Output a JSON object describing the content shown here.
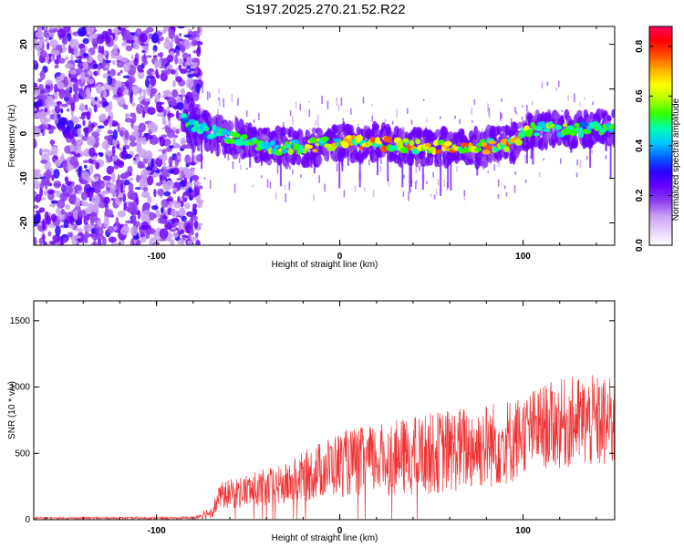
{
  "title": "S197.2025.270.21.52.R22",
  "colors": {
    "spectrogram_ramp": [
      "#ffffff",
      "#e6d2fb",
      "#c8a0f5",
      "#8f40f0",
      "#6a00ff",
      "#2a00ff",
      "#0060ff",
      "#00c8ff",
      "#00ffb0",
      "#30ff00",
      "#b0ff00",
      "#ffff00",
      "#ffb000",
      "#ff5000",
      "#ff0000",
      "#ff0060"
    ],
    "snr_line": "#ee3333"
  },
  "chart_data": [
    {
      "type": "heatmap",
      "name": "spectrogram",
      "xlabel": "Height of straight line (km)",
      "ylabel": "Frequency (Hz)",
      "xlim": [
        -167,
        150
      ],
      "ylim": [
        -25,
        24
      ],
      "x_ticks": [
        -100,
        0,
        100
      ],
      "x_tick_labels": [
        "-100",
        "0",
        "100"
      ],
      "y_ticks": [
        20,
        10,
        0,
        -10,
        -20
      ],
      "y_tick_labels": [
        "20",
        "10",
        "0",
        "-10",
        "-20"
      ],
      "colorbar": {
        "label": "Normalized spectral amplitude",
        "range": [
          0,
          0.88
        ],
        "ticks": [
          0.0,
          0.2,
          0.4,
          0.6,
          0.8
        ],
        "tick_labels": [
          "0.0",
          "0.2",
          "0.4",
          "0.6",
          "0.8"
        ]
      },
      "noise_region_x": [
        -167,
        -78
      ],
      "ridge": {
        "x": [
          -85,
          -75,
          -60,
          -40,
          -20,
          0,
          20,
          40,
          60,
          80,
          95,
          105,
          120,
          150
        ],
        "y": [
          3,
          1,
          -1,
          -3,
          -3,
          -2,
          -2,
          -3,
          -3,
          -3,
          -2,
          1,
          1,
          1
        ],
        "peak_amplitude": [
          0.4,
          0.45,
          0.55,
          0.6,
          0.7,
          0.8,
          0.85,
          0.85,
          0.8,
          0.8,
          0.85,
          0.6,
          0.55,
          0.45
        ]
      }
    },
    {
      "type": "line",
      "name": "snr",
      "xlabel": "Height of straight line (km)",
      "ylabel": "SNR (10 * v/v)",
      "xlim": [
        -167,
        150
      ],
      "ylim": [
        0,
        1650
      ],
      "x_ticks": [
        -100,
        0,
        100
      ],
      "x_tick_labels": [
        "-100",
        "0",
        "100"
      ],
      "y_ticks": [
        0,
        500,
        1000,
        1500
      ],
      "y_tick_labels": [
        "0",
        "500",
        "1000",
        "1500"
      ],
      "envelope": {
        "x": [
          -167,
          -90,
          -80,
          -70,
          -65,
          -50,
          -30,
          -20,
          -10,
          0,
          20,
          40,
          60,
          80,
          95,
          100,
          110,
          120,
          130,
          140,
          150
        ],
        "mean": [
          12,
          12,
          15,
          60,
          180,
          220,
          260,
          320,
          380,
          420,
          450,
          480,
          520,
          560,
          600,
          650,
          700,
          720,
          740,
          730,
          720
        ],
        "spread": [
          8,
          8,
          10,
          50,
          100,
          130,
          160,
          190,
          220,
          250,
          270,
          300,
          320,
          330,
          330,
          300,
          320,
          340,
          350,
          360,
          350
        ]
      }
    }
  ]
}
